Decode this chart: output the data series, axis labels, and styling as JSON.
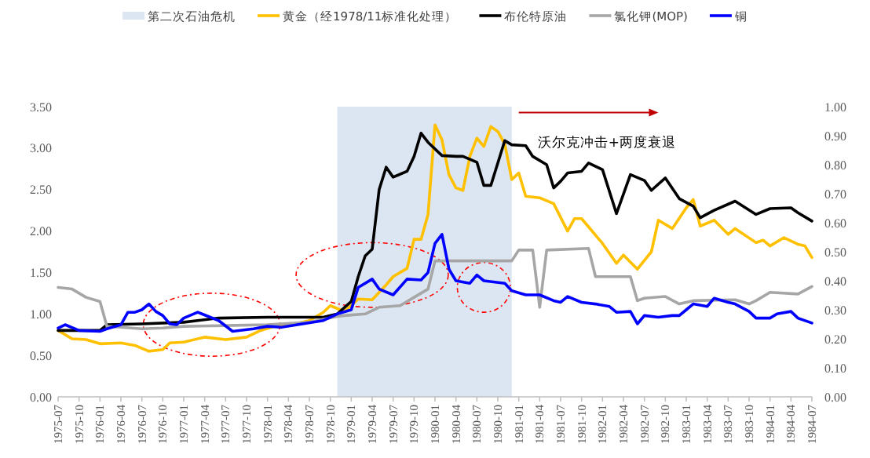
{
  "chart_data": {
    "type": "line",
    "legend": "top",
    "xlim": [
      "1975-07",
      "1984-07"
    ],
    "xticks": [
      "1975-07",
      "1975-10",
      "1976-01",
      "1976-04",
      "1976-07",
      "1976-10",
      "1977-01",
      "1977-04",
      "1977-07",
      "1977-10",
      "1978-01",
      "1978-04",
      "1978-07",
      "1978-10",
      "1979-01",
      "1979-04",
      "1979-07",
      "1979-10",
      "1980-01",
      "1980-04",
      "1980-07",
      "1980-10",
      "1981-01",
      "1981-04",
      "1981-07",
      "1981-10",
      "1982-01",
      "1982-04",
      "1982-07",
      "1982-10",
      "1983-01",
      "1983-04",
      "1983-07",
      "1983-10",
      "1984-01",
      "1984-04",
      "1984-07"
    ],
    "ylim": [
      0,
      3.5
    ],
    "yticks": [
      {
        "value": 0,
        "label": "0.00"
      },
      {
        "value": 0.5,
        "label": "0.50"
      },
      {
        "value": 1,
        "label": "1.00"
      },
      {
        "value": 1.5,
        "label": "1.50"
      },
      {
        "value": 2,
        "label": "2.00"
      },
      {
        "value": 2.5,
        "label": "2.50"
      },
      {
        "value": 3,
        "label": "3.00"
      },
      {
        "value": 3.5,
        "label": "3.50"
      }
    ],
    "y2lim": [
      0,
      1
    ],
    "y2ticks": [
      {
        "value": 0,
        "label": "0.00"
      },
      {
        "value": 0.1,
        "label": "0.10"
      },
      {
        "value": 0.2,
        "label": "0.20"
      },
      {
        "value": 0.3,
        "label": "0.30"
      },
      {
        "value": 0.4,
        "label": "0.40"
      },
      {
        "value": 0.5,
        "label": "0.50"
      },
      {
        "value": 0.6,
        "label": "0.60"
      },
      {
        "value": 0.7,
        "label": "0.70"
      },
      {
        "value": 0.8,
        "label": "0.80"
      },
      {
        "value": 0.9,
        "label": "0.90"
      },
      {
        "value": 1,
        "label": "1.00"
      }
    ],
    "bands": [
      {
        "axis": "x",
        "from": "1978-11",
        "to": "1980-12",
        "label": "第二次石油危机",
        "color": "#dce6f2"
      }
    ],
    "annotations": [
      "沃尔克冲击+两度衰退"
    ],
    "series": [
      {
        "name": "黄金（经1978/11标准化处理）",
        "color": "#ffc000",
        "x": [
          "1975-07",
          "1975-09",
          "1975-11",
          "1976-01",
          "1976-04",
          "1976-06",
          "1976-08",
          "1976-10",
          "1976-11",
          "1977-01",
          "1977-04",
          "1977-07",
          "1977-10",
          "1977-12",
          "1978-02",
          "1978-05",
          "1978-07",
          "1978-09",
          "1978-10",
          "1978-12",
          "1979-01",
          "1979-02",
          "1979-04",
          "1979-06",
          "1979-07",
          "1979-09",
          "1979-10",
          "1979-11",
          "1979-12",
          "1980-01",
          "1980-02",
          "1980-03",
          "1980-04",
          "1980-05",
          "1980-06",
          "1980-07",
          "1980-08",
          "1980-09",
          "1980-10",
          "1980-11",
          "1980-12",
          "1981-01",
          "1981-02",
          "1981-04",
          "1981-06",
          "1981-08",
          "1981-09",
          "1981-10",
          "1981-11",
          "1982-01",
          "1982-03",
          "1982-04",
          "1982-06",
          "1982-08",
          "1982-09",
          "1982-11",
          "1983-01",
          "1983-02",
          "1983-03",
          "1983-05",
          "1983-07",
          "1983-08",
          "1983-11",
          "1983-12",
          "1984-01",
          "1984-03",
          "1984-05",
          "1984-06",
          "1984-07"
        ],
        "values": [
          0.8,
          0.7,
          0.69,
          0.64,
          0.65,
          0.62,
          0.55,
          0.57,
          0.65,
          0.66,
          0.72,
          0.69,
          0.72,
          0.8,
          0.85,
          0.88,
          0.92,
          1.02,
          1.1,
          1.03,
          1.1,
          1.18,
          1.17,
          1.35,
          1.45,
          1.55,
          1.9,
          1.9,
          2.2,
          3.28,
          3.1,
          2.68,
          2.52,
          2.49,
          2.9,
          3.12,
          3.02,
          3.26,
          3.2,
          3.05,
          2.62,
          2.7,
          2.42,
          2.4,
          2.33,
          2.0,
          2.15,
          2.15,
          2.05,
          1.85,
          1.61,
          1.71,
          1.54,
          1.75,
          2.13,
          2.03,
          2.28,
          2.38,
          2.06,
          2.13,
          1.96,
          2.03,
          1.86,
          1.89,
          1.82,
          1.92,
          1.84,
          1.82,
          1.68
        ]
      },
      {
        "name": "布伦特原油",
        "color": "#000000",
        "x": [
          "1975-07",
          "1976-01",
          "1976-02",
          "1976-07",
          "1977-01",
          "1977-06",
          "1978-01",
          "1978-09",
          "1978-11",
          "1979-01",
          "1979-02",
          "1979-03",
          "1979-04",
          "1979-05",
          "1979-06",
          "1979-07",
          "1979-09",
          "1979-10",
          "1979-11",
          "1979-12",
          "1980-02",
          "1980-04",
          "1980-05",
          "1980-07",
          "1980-08",
          "1980-09",
          "1980-11",
          "1980-12",
          "1981-02",
          "1981-03",
          "1981-05",
          "1981-06",
          "1981-07",
          "1981-08",
          "1981-10",
          "1981-11",
          "1982-01",
          "1982-03",
          "1982-05",
          "1982-07",
          "1982-08",
          "1982-10",
          "1982-12",
          "1983-02",
          "1983-03",
          "1983-05",
          "1983-08",
          "1983-11",
          "1984-01",
          "1984-04",
          "1984-05",
          "1984-07"
        ],
        "values": [
          0.8,
          0.8,
          0.87,
          0.88,
          0.9,
          0.95,
          0.96,
          0.96,
          1.0,
          1.15,
          1.45,
          1.7,
          1.78,
          2.5,
          2.77,
          2.65,
          2.72,
          2.9,
          3.18,
          3.07,
          2.91,
          2.9,
          2.9,
          2.83,
          2.55,
          2.55,
          3.09,
          3.04,
          3.03,
          2.9,
          2.8,
          2.52,
          2.6,
          2.7,
          2.72,
          2.82,
          2.74,
          2.21,
          2.68,
          2.61,
          2.49,
          2.64,
          2.39,
          2.3,
          2.16,
          2.25,
          2.36,
          2.2,
          2.27,
          2.28,
          2.22,
          2.12
        ]
      },
      {
        "name": "氯化钾(MOP)",
        "color": "#a6a6a6",
        "x": [
          "1975-07",
          "1975-09",
          "1975-11",
          "1976-01",
          "1976-02",
          "1976-04",
          "1976-07",
          "1976-10",
          "1977-01",
          "1977-07",
          "1978-01",
          "1978-07",
          "1978-11",
          "1978-12",
          "1979-03",
          "1979-05",
          "1979-08",
          "1979-10",
          "1979-11",
          "1979-12",
          "1980-01",
          "1980-12",
          "1981-01",
          "1981-03",
          "1981-04",
          "1981-05",
          "1981-11",
          "1981-12",
          "1982-05",
          "1982-06",
          "1982-07",
          "1982-10",
          "1982-12",
          "1983-02",
          "1983-08",
          "1983-10",
          "1983-11",
          "1984-01",
          "1984-05",
          "1984-07"
        ],
        "values": [
          1.32,
          1.3,
          1.2,
          1.15,
          0.85,
          0.84,
          0.82,
          0.83,
          0.85,
          0.86,
          0.87,
          0.9,
          0.97,
          0.98,
          1.0,
          1.08,
          1.1,
          1.2,
          1.25,
          1.3,
          1.64,
          1.64,
          1.77,
          1.77,
          1.08,
          1.77,
          1.79,
          1.45,
          1.45,
          1.16,
          1.19,
          1.21,
          1.12,
          1.16,
          1.17,
          1.12,
          1.16,
          1.26,
          1.24,
          1.33
        ]
      },
      {
        "name": "铜",
        "color": "#0000ff",
        "x": [
          "1975-07",
          "1975-08",
          "1975-10",
          "1976-01",
          "1976-02",
          "1976-04",
          "1976-05",
          "1976-06",
          "1976-07",
          "1976-08",
          "1976-09",
          "1976-10",
          "1976-11",
          "1976-12",
          "1977-01",
          "1977-03",
          "1977-06",
          "1977-08",
          "1977-11",
          "1978-01",
          "1978-03",
          "1978-06",
          "1978-09",
          "1978-11",
          "1979-01",
          "1979-02",
          "1979-04",
          "1979-05",
          "1979-07",
          "1979-09",
          "1979-11",
          "1979-12",
          "1980-01",
          "1980-02",
          "1980-03",
          "1980-04",
          "1980-06",
          "1980-07",
          "1980-08",
          "1980-11",
          "1980-12",
          "1981-02",
          "1981-04",
          "1981-06",
          "1981-07",
          "1981-08",
          "1981-10",
          "1981-12",
          "1982-02",
          "1982-03",
          "1982-05",
          "1982-06",
          "1982-07",
          "1982-09",
          "1982-11",
          "1982-12",
          "1983-01",
          "1983-02",
          "1983-04",
          "1983-05",
          "1983-07",
          "1983-08",
          "1983-10",
          "1983-11",
          "1984-01",
          "1984-02",
          "1984-04",
          "1984-05",
          "1984-07"
        ],
        "values": [
          0.83,
          0.87,
          0.8,
          0.79,
          0.82,
          0.87,
          1.02,
          1.02,
          1.05,
          1.12,
          1.03,
          0.98,
          0.88,
          0.87,
          0.95,
          1.02,
          0.92,
          0.79,
          0.82,
          0.85,
          0.84,
          0.88,
          0.92,
          1.0,
          1.05,
          1.32,
          1.42,
          1.3,
          1.23,
          1.42,
          1.41,
          1.5,
          1.85,
          1.96,
          1.54,
          1.4,
          1.37,
          1.47,
          1.4,
          1.37,
          1.28,
          1.23,
          1.23,
          1.16,
          1.14,
          1.21,
          1.14,
          1.12,
          1.09,
          1.02,
          1.03,
          0.88,
          0.98,
          0.96,
          0.98,
          0.98,
          1.05,
          1.12,
          1.09,
          1.19,
          1.14,
          1.12,
          1.03,
          0.95,
          0.95,
          1.0,
          1.03,
          0.95,
          0.89
        ]
      }
    ]
  }
}
